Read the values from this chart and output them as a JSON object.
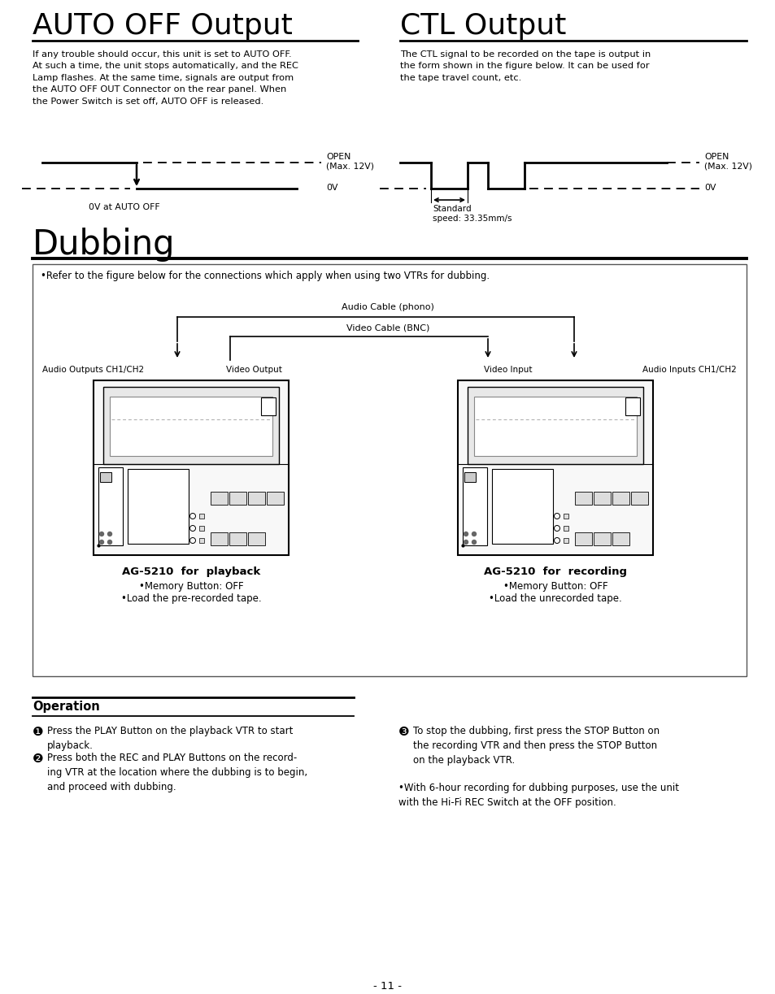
{
  "page_bg": "#ffffff",
  "title1": "AUTO OFF Output",
  "title2": "CTL Output",
  "title3": "Dubbing",
  "section_title_fontsize": 26,
  "dubbing_title_fontsize": 30,
  "body_fontsize": 8.2,
  "auto_off_text": "If any trouble should occur, this unit is set to AUTO OFF.\nAt such a time, the unit stops automatically, and the REC\nLamp flashes. At the same time, signals are output from\nthe AUTO OFF OUT Connector on the rear panel. When\nthe Power Switch is set off, AUTO OFF is released.",
  "ctl_text": "The CTL signal to be recorded on the tape is output in\nthe form shown in the figure below. It can be used for\nthe tape travel count, etc.",
  "dubbing_note": "•Refer to the figure below for the connections which apply when using two VTRs for dubbing.",
  "audio_cable_label": "Audio Cable (phono)",
  "video_cable_label": "Video Cable (BNC)",
  "audio_outputs_label": "Audio Outputs CH1/CH2",
  "video_output_label": "Video Output",
  "video_input_label": "Video Input",
  "audio_inputs_label": "Audio Inputs CH1/CH2",
  "playback_title": "AG-5210  for  playback",
  "playback_bullets": [
    "•Memory Button: OFF",
    "•Load the pre-recorded tape."
  ],
  "recording_title": "AG-5210  for  recording",
  "recording_bullets": [
    "•Memory Button: OFF",
    "•Load the unrecorded tape."
  ],
  "operation_title": "Operation",
  "op1": "Press the PLAY Button on the playback VTR to start\nplayback.",
  "op2": "Press both the REC and PLAY Buttons on the record-\ning VTR at the location where the dubbing is to begin,\nand proceed with dubbing.",
  "op3": "To stop the dubbing, first press the STOP Button on\nthe recording VTR and then press the STOP Button\non the playback VTR.",
  "op_note": "•With 6-hour recording for dubbing purposes, use the unit\nwith the Hi-Fi REC Switch at the OFF position.",
  "page_number": "- 11 -",
  "open_label": "OPEN\n(Max. 12V)",
  "ov_label": "0V",
  "auto_off_signal_label": "0V at AUTO OFF",
  "standard_speed_label": "Standard\nspeed: 33.35mm/s"
}
